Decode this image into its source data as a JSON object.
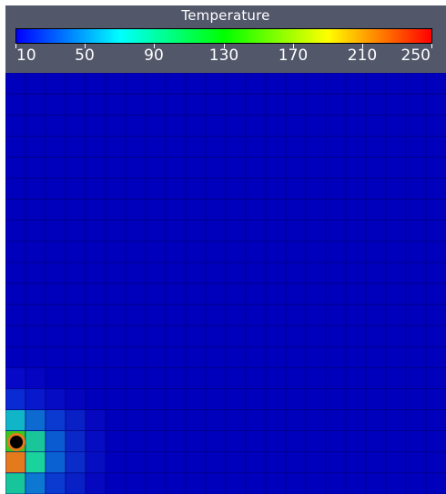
{
  "legend": {
    "title": "Temperature",
    "ticks": [
      "10",
      "50",
      "90",
      "130",
      "170",
      "210",
      "250"
    ],
    "range": [
      10,
      250
    ],
    "colormap": [
      "#0000ff",
      "#00ffff",
      "#00ff00",
      "#ffff00",
      "#ff0000"
    ]
  },
  "colors": {
    "background": "#52576a",
    "base_cell": "#0000bc",
    "cell_border": "#00007a",
    "marker_ring": "#e37a1c",
    "marker_core": "#000000"
  },
  "field": {
    "columns": 22,
    "rows": 20,
    "hot_cells": [
      {
        "col": 0,
        "row": 14,
        "color": "#0808c8"
      },
      {
        "col": 1,
        "row": 14,
        "color": "#0404c2"
      },
      {
        "col": 0,
        "row": 15,
        "color": "#0a2ad4"
      },
      {
        "col": 1,
        "row": 15,
        "color": "#0818cc"
      },
      {
        "col": 2,
        "row": 15,
        "color": "#060cc4"
      },
      {
        "col": 3,
        "row": 15,
        "color": "#0404be"
      },
      {
        "col": 0,
        "row": 16,
        "color": "#10b6c8"
      },
      {
        "col": 1,
        "row": 16,
        "color": "#0c6ad0"
      },
      {
        "col": 2,
        "row": 16,
        "color": "#0a3ad0"
      },
      {
        "col": 3,
        "row": 16,
        "color": "#0820c6"
      },
      {
        "col": 4,
        "row": 16,
        "color": "#0608c0"
      },
      {
        "col": 0,
        "row": 17,
        "color": "#3cc81a"
      },
      {
        "col": 1,
        "row": 17,
        "color": "#18c69a"
      },
      {
        "col": 2,
        "row": 17,
        "color": "#0a5ad2"
      },
      {
        "col": 3,
        "row": 17,
        "color": "#0a28c8"
      },
      {
        "col": 4,
        "row": 17,
        "color": "#060cc2"
      },
      {
        "col": 0,
        "row": 18,
        "color": "#e37a1c"
      },
      {
        "col": 1,
        "row": 18,
        "color": "#1ad29c"
      },
      {
        "col": 2,
        "row": 18,
        "color": "#0a62d2"
      },
      {
        "col": 3,
        "row": 18,
        "color": "#0a2cc8"
      },
      {
        "col": 4,
        "row": 18,
        "color": "#060ec2"
      },
      {
        "col": 0,
        "row": 19,
        "color": "#18c49a"
      },
      {
        "col": 1,
        "row": 19,
        "color": "#0c78d2"
      },
      {
        "col": 2,
        "row": 19,
        "color": "#0a3ad0"
      },
      {
        "col": 3,
        "row": 19,
        "color": "#0820c6"
      },
      {
        "col": 4,
        "row": 19,
        "color": "#0608c0"
      }
    ]
  }
}
